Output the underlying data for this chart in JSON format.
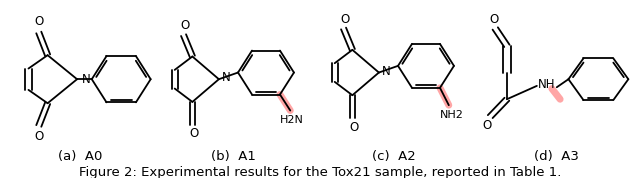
{
  "title": "Figure 2: Experimental results for the Tox21 sample, reported in Table 1.",
  "subcaptions": [
    "(a)  A0",
    "(b)  A1",
    "(c)  A2",
    "(d)  A3"
  ],
  "background_color": "#ffffff",
  "title_fontsize": 9.5,
  "subcaption_fontsize": 9.5
}
